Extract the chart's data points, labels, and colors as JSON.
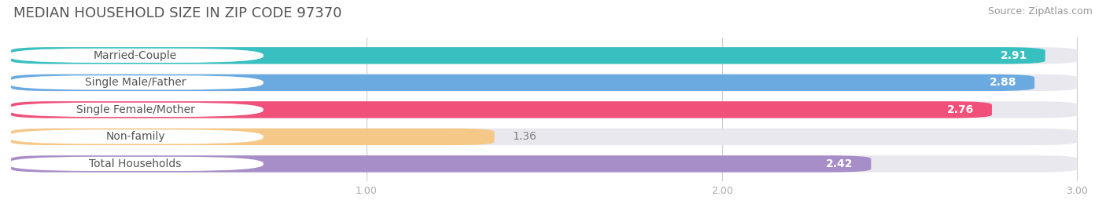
{
  "title": "MEDIAN HOUSEHOLD SIZE IN ZIP CODE 97370",
  "source": "Source: ZipAtlas.com",
  "categories": [
    "Married-Couple",
    "Single Male/Father",
    "Single Female/Mother",
    "Non-family",
    "Total Households"
  ],
  "values": [
    2.91,
    2.88,
    2.76,
    1.36,
    2.42
  ],
  "bar_colors": [
    "#38bfbf",
    "#6aaae0",
    "#f0507a",
    "#f5c888",
    "#a88ec8"
  ],
  "xmin": 0.0,
  "xmax": 3.0,
  "xticks": [
    1.0,
    2.0,
    3.0
  ],
  "background_color": "#ffffff",
  "bar_bg_color": "#e8e8ee",
  "title_color": "#555555",
  "source_color": "#999999",
  "label_color": "#555555",
  "value_color_inside": "#ffffff",
  "value_color_outside": "#888888",
  "title_fontsize": 13,
  "source_fontsize": 9,
  "label_fontsize": 10,
  "value_fontsize": 10,
  "bar_gap": 0.15
}
